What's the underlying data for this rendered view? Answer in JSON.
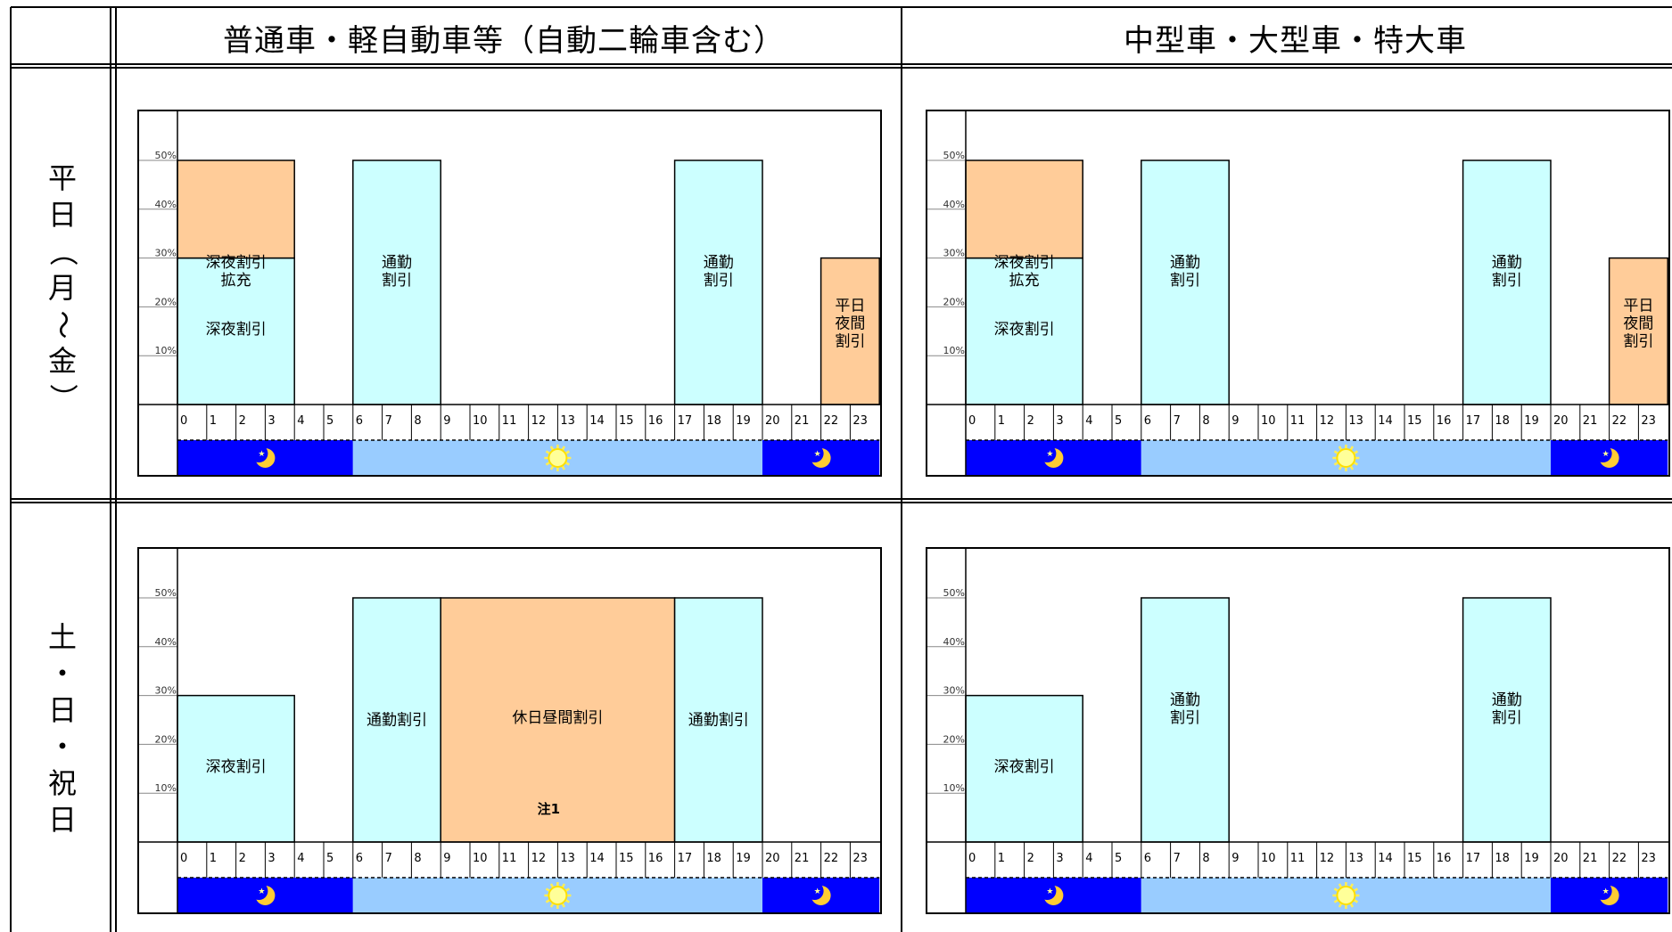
{
  "headers": {
    "col1": "普通車・軽自動車等（自動二輪車含む）",
    "col2": "中型車・大型車・特大車",
    "row1": [
      "平",
      "日",
      "（",
      "月",
      "〜",
      "金",
      "）"
    ],
    "row2": [
      "土",
      "・",
      "日",
      "・",
      "祝",
      "日"
    ]
  },
  "colors": {
    "deep_night": "#ccffff",
    "deep_night_extra": "#ffcc99",
    "commute": "#ccffff",
    "weekday_night": "#ffcc99",
    "holiday_daytime": "#ffcc99",
    "night_band": "#0000ff",
    "day_band": "#99ccff"
  },
  "icons": {
    "night": "moon-icon",
    "day": "sun-icon"
  },
  "chart_data": [
    {
      "type": "bar",
      "panel": "regular-weekday",
      "x_unit": "hour",
      "xlim": [
        0,
        24
      ],
      "x_ticks": [
        "0",
        "1",
        "2",
        "3",
        "4",
        "5",
        "6",
        "7",
        "8",
        "9",
        "10",
        "11",
        "12",
        "13",
        "14",
        "15",
        "16",
        "17",
        "18",
        "19",
        "20",
        "21",
        "22",
        "23"
      ],
      "ylim": [
        0,
        50
      ],
      "y_ticks": [
        "10%",
        "20%",
        "30%",
        "40%",
        "50%"
      ],
      "bars": [
        {
          "label": [
            "深夜割引"
          ],
          "from": 0,
          "to": 4,
          "y0": 0,
          "y1": 30,
          "color": "#ccffff"
        },
        {
          "label": [
            "深夜割引",
            "拡充"
          ],
          "from": 0,
          "to": 4,
          "y0": 30,
          "y1": 50,
          "color": "#ffcc99"
        },
        {
          "label": [
            "通勤",
            "割引"
          ],
          "from": 6,
          "to": 9,
          "y0": 0,
          "y1": 50,
          "color": "#ccffff"
        },
        {
          "label": [
            "通勤",
            "割引"
          ],
          "from": 17,
          "to": 20,
          "y0": 0,
          "y1": 50,
          "color": "#ccffff"
        },
        {
          "label": [
            "平日",
            "夜間",
            "割引"
          ],
          "from": 22,
          "to": 24,
          "y0": 0,
          "y1": 30,
          "color": "#ffcc99"
        }
      ],
      "bands": [
        {
          "from": 0,
          "to": 6,
          "kind": "night"
        },
        {
          "from": 6,
          "to": 20,
          "kind": "day"
        },
        {
          "from": 20,
          "to": 24,
          "kind": "night"
        }
      ]
    },
    {
      "type": "bar",
      "panel": "large-weekday",
      "x_unit": "hour",
      "xlim": [
        0,
        24
      ],
      "x_ticks": [
        "0",
        "1",
        "2",
        "3",
        "4",
        "5",
        "6",
        "7",
        "8",
        "9",
        "10",
        "11",
        "12",
        "13",
        "14",
        "15",
        "16",
        "17",
        "18",
        "19",
        "20",
        "21",
        "22",
        "23"
      ],
      "ylim": [
        0,
        50
      ],
      "y_ticks": [
        "10%",
        "20%",
        "30%",
        "40%",
        "50%"
      ],
      "bars": [
        {
          "label": [
            "深夜割引"
          ],
          "from": 0,
          "to": 4,
          "y0": 0,
          "y1": 30,
          "color": "#ccffff"
        },
        {
          "label": [
            "深夜割引",
            "拡充"
          ],
          "from": 0,
          "to": 4,
          "y0": 30,
          "y1": 50,
          "color": "#ffcc99"
        },
        {
          "label": [
            "通勤",
            "割引"
          ],
          "from": 6,
          "to": 9,
          "y0": 0,
          "y1": 50,
          "color": "#ccffff"
        },
        {
          "label": [
            "通勤",
            "割引"
          ],
          "from": 17,
          "to": 20,
          "y0": 0,
          "y1": 50,
          "color": "#ccffff"
        },
        {
          "label": [
            "平日",
            "夜間",
            "割引"
          ],
          "from": 22,
          "to": 24,
          "y0": 0,
          "y1": 30,
          "color": "#ffcc99"
        }
      ],
      "bands": [
        {
          "from": 0,
          "to": 6,
          "kind": "night"
        },
        {
          "from": 6,
          "to": 20,
          "kind": "day"
        },
        {
          "from": 20,
          "to": 24,
          "kind": "night"
        }
      ]
    },
    {
      "type": "bar",
      "panel": "regular-holiday",
      "x_unit": "hour",
      "xlim": [
        0,
        24
      ],
      "x_ticks": [
        "0",
        "1",
        "2",
        "3",
        "4",
        "5",
        "6",
        "7",
        "8",
        "9",
        "10",
        "11",
        "12",
        "13",
        "14",
        "15",
        "16",
        "17",
        "18",
        "19",
        "20",
        "21",
        "22",
        "23"
      ],
      "ylim": [
        0,
        50
      ],
      "y_ticks": [
        "10%",
        "20%",
        "30%",
        "40%",
        "50%"
      ],
      "bars": [
        {
          "label": [
            "深夜割引"
          ],
          "from": 0,
          "to": 4,
          "y0": 0,
          "y1": 30,
          "color": "#ccffff"
        },
        {
          "label": [
            "通勤割引"
          ],
          "from": 6,
          "to": 9,
          "y0": 0,
          "y1": 50,
          "color": "#ccffff"
        },
        {
          "label": [
            "休日昼間割引"
          ],
          "note": "注1",
          "from": 9,
          "to": 17,
          "y0": 0,
          "y1": 50,
          "color": "#ffcc99"
        },
        {
          "label": [
            "通勤割引"
          ],
          "from": 17,
          "to": 20,
          "y0": 0,
          "y1": 50,
          "color": "#ccffff"
        }
      ],
      "bands": [
        {
          "from": 0,
          "to": 6,
          "kind": "night"
        },
        {
          "from": 6,
          "to": 20,
          "kind": "day"
        },
        {
          "from": 20,
          "to": 24,
          "kind": "night"
        }
      ]
    },
    {
      "type": "bar",
      "panel": "large-holiday",
      "x_unit": "hour",
      "xlim": [
        0,
        24
      ],
      "x_ticks": [
        "0",
        "1",
        "2",
        "3",
        "4",
        "5",
        "6",
        "7",
        "8",
        "9",
        "10",
        "11",
        "12",
        "13",
        "14",
        "15",
        "16",
        "17",
        "18",
        "19",
        "20",
        "21",
        "22",
        "23"
      ],
      "ylim": [
        0,
        50
      ],
      "y_ticks": [
        "10%",
        "20%",
        "30%",
        "40%",
        "50%"
      ],
      "bars": [
        {
          "label": [
            "深夜割引"
          ],
          "from": 0,
          "to": 4,
          "y0": 0,
          "y1": 30,
          "color": "#ccffff"
        },
        {
          "label": [
            "通勤",
            "割引"
          ],
          "from": 6,
          "to": 9,
          "y0": 0,
          "y1": 50,
          "color": "#ccffff"
        },
        {
          "label": [
            "通勤",
            "割引"
          ],
          "from": 17,
          "to": 20,
          "y0": 0,
          "y1": 50,
          "color": "#ccffff"
        }
      ],
      "bands": [
        {
          "from": 0,
          "to": 6,
          "kind": "night"
        },
        {
          "from": 6,
          "to": 20,
          "kind": "day"
        },
        {
          "from": 20,
          "to": 24,
          "kind": "night"
        }
      ]
    }
  ]
}
